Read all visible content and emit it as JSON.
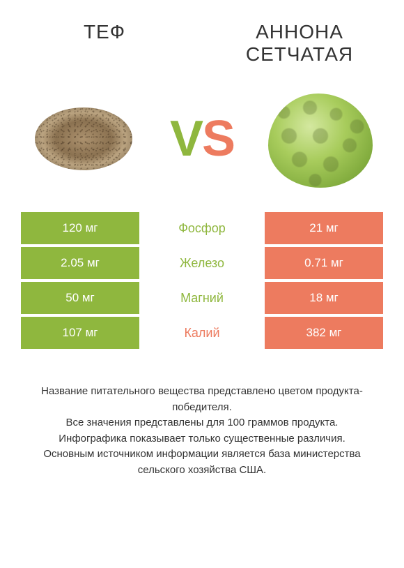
{
  "colors": {
    "left": "#8fb73e",
    "right": "#ed7b5f",
    "text_dark": "#333333",
    "white": "#ffffff"
  },
  "header": {
    "left_title": "ТЕФ",
    "right_title": "АННОНА СЕТЧАТАЯ"
  },
  "vs": {
    "v": "V",
    "s": "S"
  },
  "rows": [
    {
      "label": "Фосфор",
      "left": "120 мг",
      "right": "21 мг",
      "winner": "left"
    },
    {
      "label": "Железо",
      "left": "2.05 мг",
      "right": "0.71 мг",
      "winner": "left"
    },
    {
      "label": "Магний",
      "left": "50 мг",
      "right": "18 мг",
      "winner": "left"
    },
    {
      "label": "Калий",
      "left": "107 мг",
      "right": "382 мг",
      "winner": "right"
    }
  ],
  "footnote": {
    "line1": "Название питательного вещества представлено цветом продукта-победителя.",
    "line2": "Все значения представлены для 100 граммов продукта.",
    "line3": "Инфографика показывает только существенные различия.",
    "line4": "Основным источником информации является база министерства сельского хозяйства США."
  }
}
